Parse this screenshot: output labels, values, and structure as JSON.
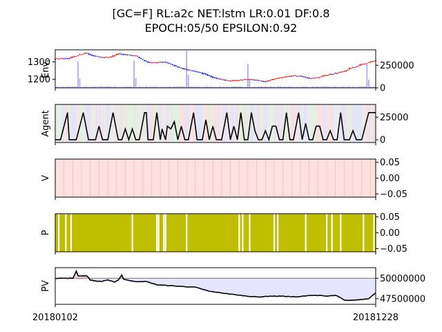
{
  "title_line1": "[GC=F] RL:a2c NET:lstm LR:0.01 DF:0.8",
  "title_line2": "EPOCH:05/50 EPSILON:0.92",
  "x_tick_labels": [
    "20180102",
    "20181228"
  ],
  "colors": {
    "up_candle": "#ff0000",
    "down_candle": "#0000ff",
    "volume": "#aaaaff",
    "agent_line": "#000000",
    "value_fill": "#ffe0e0",
    "policy_fill": "#bfbf00",
    "pv_loss_fill": "#e5e5ff",
    "pv_gain_fill": "#ffd8d8",
    "baseline": "#808080"
  },
  "chart_data": [
    {
      "type": "candlestick",
      "ylabel": "Env.",
      "ylim": [
        1150,
        1370
      ],
      "yticks": [
        1200,
        1300
      ],
      "y2lim": [
        0,
        420000
      ],
      "y2ticks": [
        0,
        250000
      ],
      "y2tick_labels": [
        "0",
        "250000"
      ],
      "close_keypoints": [
        [
          0,
          1318
        ],
        [
          8,
          1322
        ],
        [
          13,
          1340
        ],
        [
          17,
          1352
        ],
        [
          22,
          1335
        ],
        [
          27,
          1325
        ],
        [
          32,
          1330
        ],
        [
          36,
          1348
        ],
        [
          40,
          1342
        ],
        [
          46,
          1335
        ],
        [
          50,
          1310
        ],
        [
          54,
          1295
        ],
        [
          58,
          1298
        ],
        [
          62,
          1300
        ],
        [
          65,
          1290
        ],
        [
          70,
          1270
        ],
        [
          75,
          1255
        ],
        [
          80,
          1245
        ],
        [
          85,
          1232
        ],
        [
          90,
          1210
        ],
        [
          95,
          1198
        ],
        [
          100,
          1190
        ],
        [
          105,
          1195
        ],
        [
          110,
          1200
        ],
        [
          115,
          1195
        ],
        [
          120,
          1185
        ],
        [
          125,
          1202
        ],
        [
          130,
          1210
        ],
        [
          135,
          1220
        ],
        [
          140,
          1218
        ],
        [
          145,
          1205
        ],
        [
          150,
          1210
        ],
        [
          155,
          1225
        ],
        [
          160,
          1235
        ],
        [
          165,
          1245
        ],
        [
          168,
          1262
        ],
        [
          172,
          1275
        ],
        [
          176,
          1290
        ],
        [
          180,
          1300
        ],
        [
          183,
          1308
        ]
      ],
      "volume_spikes": [
        [
          13,
          290000
        ],
        [
          45,
          300000
        ],
        [
          75,
          410000
        ],
        [
          110,
          260000
        ],
        [
          178,
          260000
        ]
      ]
    },
    {
      "type": "line",
      "ylabel": "Agent",
      "ylim": [
        -3000,
        39000
      ],
      "y2ticks": [
        0,
        25000
      ],
      "y2tick_labels": [
        "0",
        "25000"
      ],
      "keypoints": [
        [
          0,
          0
        ],
        [
          3,
          0
        ],
        [
          7,
          30000
        ],
        [
          8,
          0
        ],
        [
          12,
          0
        ],
        [
          16,
          30000
        ],
        [
          19,
          0
        ],
        [
          23,
          0
        ],
        [
          25,
          15000
        ],
        [
          27,
          0
        ],
        [
          30,
          0
        ],
        [
          33,
          30000
        ],
        [
          36,
          0
        ],
        [
          38,
          0
        ],
        [
          40,
          12000
        ],
        [
          42,
          0
        ],
        [
          44,
          12000
        ],
        [
          46,
          0
        ],
        [
          48,
          0
        ],
        [
          51,
          30000
        ],
        [
          52,
          30000
        ],
        [
          53,
          0
        ],
        [
          56,
          0
        ],
        [
          58,
          30000
        ],
        [
          60,
          0
        ],
        [
          61,
          12000
        ],
        [
          63,
          0
        ],
        [
          64,
          15000
        ],
        [
          66,
          12000
        ],
        [
          68,
          20000
        ],
        [
          70,
          0
        ],
        [
          72,
          15000
        ],
        [
          74,
          0
        ],
        [
          76,
          0
        ],
        [
          79,
          30000
        ],
        [
          81,
          0
        ],
        [
          84,
          0
        ],
        [
          86,
          22000
        ],
        [
          88,
          0
        ],
        [
          90,
          15000
        ],
        [
          92,
          0
        ],
        [
          95,
          0
        ],
        [
          98,
          30000
        ],
        [
          100,
          0
        ],
        [
          102,
          15000
        ],
        [
          104,
          0
        ],
        [
          106,
          30000
        ],
        [
          108,
          0
        ],
        [
          110,
          0
        ],
        [
          112,
          30000
        ],
        [
          114,
          10000
        ],
        [
          116,
          0
        ],
        [
          118,
          0
        ],
        [
          120,
          10000
        ],
        [
          122,
          0
        ],
        [
          124,
          15000
        ],
        [
          126,
          15000
        ],
        [
          128,
          0
        ],
        [
          130,
          0
        ],
        [
          132,
          30000
        ],
        [
          134,
          0
        ],
        [
          136,
          0
        ],
        [
          139,
          30000
        ],
        [
          141,
          0
        ],
        [
          143,
          18000
        ],
        [
          145,
          0
        ],
        [
          147,
          0
        ],
        [
          149,
          15000
        ],
        [
          151,
          15000
        ],
        [
          153,
          0
        ],
        [
          155,
          0
        ],
        [
          157,
          10000
        ],
        [
          159,
          0
        ],
        [
          161,
          0
        ],
        [
          163,
          30000
        ],
        [
          165,
          0
        ],
        [
          168,
          0
        ],
        [
          170,
          10000
        ],
        [
          172,
          0
        ],
        [
          175,
          0
        ],
        [
          179,
          30000
        ],
        [
          183,
          30000
        ]
      ],
      "background_bands": [
        "red",
        "green",
        "blue",
        "gray"
      ]
    },
    {
      "type": "area",
      "ylabel": "V",
      "ylim": [
        -0.06,
        0.06
      ],
      "y2ticks": [
        0.05,
        0.0,
        -0.05
      ],
      "y2tick_labels": [
        "0.05",
        "0.00",
        "−0.05"
      ],
      "values": "constant 0 across all steps; full-height light red fill"
    },
    {
      "type": "area",
      "ylabel": "P",
      "ylim": [
        -0.06,
        0.06
      ],
      "y2ticks": [
        0.05,
        0.0,
        -0.05
      ],
      "y2tick_labels": [
        "0.05",
        "0.00",
        "−0.05"
      ],
      "gap_steps": [
        2,
        6,
        9,
        44,
        58,
        59,
        62,
        63,
        75,
        105,
        107,
        111,
        125,
        127,
        143,
        155,
        158,
        163,
        176,
        182
      ]
    },
    {
      "type": "line",
      "ylabel": "PV",
      "ylim": [
        46800000,
        51300000
      ],
      "baseline": 50000000,
      "y2ticks": [
        50000000,
        47500000
      ],
      "y2tick_labels": [
        "50000000",
        "47500000"
      ],
      "keypoints": [
        [
          0,
          50000000
        ],
        [
          10,
          50000000
        ],
        [
          11,
          50400000
        ],
        [
          12,
          50900000
        ],
        [
          13,
          50300000
        ],
        [
          18,
          50300000
        ],
        [
          20,
          49800000
        ],
        [
          22,
          49700000
        ],
        [
          26,
          49600000
        ],
        [
          30,
          49800000
        ],
        [
          34,
          49500000
        ],
        [
          36,
          49800000
        ],
        [
          38,
          50400000
        ],
        [
          39,
          49900000
        ],
        [
          45,
          49600000
        ],
        [
          52,
          49600000
        ],
        [
          58,
          49200000
        ],
        [
          65,
          49100000
        ],
        [
          72,
          49000000
        ],
        [
          80,
          48900000
        ],
        [
          88,
          48400000
        ],
        [
          95,
          48200000
        ],
        [
          102,
          48000000
        ],
        [
          110,
          47800000
        ],
        [
          116,
          47700000
        ],
        [
          122,
          47800000
        ],
        [
          130,
          47800000
        ],
        [
          138,
          47700000
        ],
        [
          145,
          47900000
        ],
        [
          150,
          47900000
        ],
        [
          155,
          47800000
        ],
        [
          160,
          47900000
        ],
        [
          163,
          47600000
        ],
        [
          165,
          47300000
        ],
        [
          170,
          47300000
        ],
        [
          175,
          47400000
        ],
        [
          179,
          47500000
        ],
        [
          181,
          47900000
        ],
        [
          183,
          48200000
        ]
      ]
    }
  ]
}
